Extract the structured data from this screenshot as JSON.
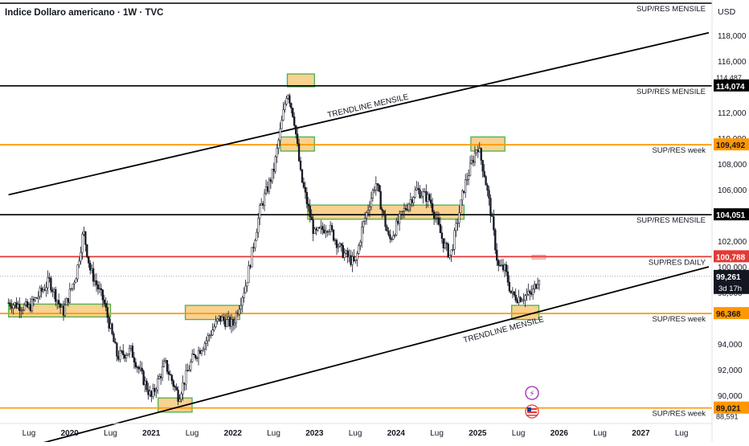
{
  "header": {
    "title": "Indice Dollaro americano · 1W · TVC",
    "currency": "USD"
  },
  "colors": {
    "background": "#ffffff",
    "candle_up": "#131722",
    "candle_down": "#131722",
    "support_black": "#000000",
    "support_orange": "#ff9800",
    "support_red": "#e53935",
    "zone_fill": "#f7c26b",
    "zone_border": "#4caf50",
    "trendline": "#000000",
    "current_price_label": "#131722",
    "axis_text": "#131722"
  },
  "chart_data": {
    "type": "candlestick",
    "title": "Indice Dollaro americano · 1W · TVC",
    "xlabel": "",
    "ylabel": "USD",
    "ylim": [
      88.0,
      120.0
    ],
    "y_ticks": [
      "118,000",
      "116,000",
      "112,000",
      "110,000",
      "108,000",
      "106,000",
      "102,000",
      "100,000",
      "98,000",
      "94,000",
      "92,000",
      "90,000"
    ],
    "x_ticks": [
      {
        "label": "Lug",
        "x": "2019-07"
      },
      {
        "label": "2020",
        "x": "2020-01"
      },
      {
        "label": "Lug",
        "x": "2020-07"
      },
      {
        "label": "2021",
        "x": "2021-01"
      },
      {
        "label": "Lug",
        "x": "2021-07"
      },
      {
        "label": "2022",
        "x": "2022-01"
      },
      {
        "label": "Lug",
        "x": "2022-07"
      },
      {
        "label": "2023",
        "x": "2023-01"
      },
      {
        "label": "Lug",
        "x": "2023-07"
      },
      {
        "label": "2024",
        "x": "2024-01"
      },
      {
        "label": "Lug",
        "x": "2024-07"
      },
      {
        "label": "2025",
        "x": "2025-01"
      },
      {
        "label": "Lug",
        "x": "2025-07"
      },
      {
        "label": "2026",
        "x": "2026-01"
      },
      {
        "label": "Lug",
        "x": "2026-07"
      },
      {
        "label": "2027",
        "x": "2027-01"
      },
      {
        "label": "Lug",
        "x": "2027-07"
      }
    ],
    "price_anchors": [
      [
        "2019-04",
        97.2
      ],
      [
        "2019-07",
        96.8
      ],
      [
        "2019-10",
        98.9
      ],
      [
        "2019-12",
        96.4
      ],
      [
        "2020-02",
        99.5
      ],
      [
        "2020-03",
        102.8
      ],
      [
        "2020-04",
        99.8
      ],
      [
        "2020-06",
        97.3
      ],
      [
        "2020-08",
        93.0
      ],
      [
        "2020-10",
        93.5
      ],
      [
        "2021-01",
        89.8
      ],
      [
        "2021-03",
        92.5
      ],
      [
        "2021-05",
        89.9
      ],
      [
        "2021-07",
        92.8
      ],
      [
        "2021-09",
        94.2
      ],
      [
        "2021-11",
        96.0
      ],
      [
        "2022-01",
        95.5
      ],
      [
        "2022-03",
        98.8
      ],
      [
        "2022-05",
        104.5
      ],
      [
        "2022-07",
        107.5
      ],
      [
        "2022-09",
        113.8
      ],
      [
        "2022-10",
        111.5
      ],
      [
        "2022-11",
        107.0
      ],
      [
        "2023-01",
        102.5
      ],
      [
        "2023-03",
        103.2
      ],
      [
        "2023-05",
        101.2
      ],
      [
        "2023-07",
        100.2
      ],
      [
        "2023-08",
        103.0
      ],
      [
        "2023-10",
        106.6
      ],
      [
        "2023-12",
        102.0
      ],
      [
        "2024-02",
        104.2
      ],
      [
        "2024-04",
        106.0
      ],
      [
        "2024-06",
        105.2
      ],
      [
        "2024-08",
        101.8
      ],
      [
        "2024-09",
        100.8
      ],
      [
        "2024-11",
        106.2
      ],
      [
        "2025-01",
        109.5
      ],
      [
        "2025-02",
        107.2
      ],
      [
        "2025-03",
        104.0
      ],
      [
        "2025-04",
        100.0
      ],
      [
        "2025-05",
        99.8
      ],
      [
        "2025-06",
        97.8
      ],
      [
        "2025-07",
        97.6
      ],
      [
        "2025-09",
        97.9
      ],
      [
        "2025-10",
        99.26
      ]
    ],
    "levels": [
      {
        "label": "SUP/RES  MENSILE",
        "value": 114.074,
        "price_label": "114,074",
        "color": "#000000",
        "tag": "level_114"
      },
      {
        "label": "SUP/RES week",
        "value": 109.492,
        "price_label": "109,492",
        "color": "#ff9800",
        "tag": "level_109"
      },
      {
        "label": "SUP/RES  MENSILE",
        "value": 104.051,
        "price_label": "104,051",
        "color": "#000000",
        "tag": "level_104"
      },
      {
        "label": "SUP/RES DAILY",
        "value": 100.788,
        "price_label": "100,788",
        "color": "#e53935",
        "tag": "level_100"
      },
      {
        "label": "SUP/RES week",
        "value": 96.368,
        "price_label": "96,368",
        "color": "#ff9800",
        "tag": "level_96"
      },
      {
        "label": "SUP/RES week",
        "value": 89.021,
        "price_label": "89,021",
        "color": "#ff9800",
        "tag": "level_89"
      }
    ],
    "top_level_label": "SUP/RES  MENSILE",
    "top_level_partial_label": "114,487",
    "bottom_level_partial_label": "88,591",
    "current_price": {
      "value": 99.261,
      "label": "99,261",
      "countdown": "3d 17h"
    },
    "trendlines": [
      {
        "label": "TRENDLINE MENSILE",
        "from": [
          "2019-04",
          105.6
        ],
        "to": [
          "2027-11",
          118.2
        ]
      },
      {
        "label": "TRENDLINE MENSILE",
        "from": [
          "2019-04",
          85.6
        ],
        "to": [
          "2027-11",
          100.0
        ]
      }
    ],
    "zones": [
      {
        "from": "2019-04",
        "to": "2020-07",
        "low": 96.1,
        "high": 97.1
      },
      {
        "from": "2021-06",
        "to": "2022-02",
        "low": 95.9,
        "high": 97.0
      },
      {
        "from": "2021-02",
        "to": "2021-07",
        "low": 88.7,
        "high": 89.8
      },
      {
        "from": "2022-08",
        "to": "2023-01",
        "low": 109.0,
        "high": 110.1
      },
      {
        "from": "2022-09",
        "to": "2023-01",
        "low": 114.0,
        "high": 115.0
      },
      {
        "from": "2022-12",
        "to": "2024-11",
        "low": 103.7,
        "high": 104.8
      },
      {
        "from": "2024-12",
        "to": "2025-05",
        "low": 109.0,
        "high": 110.1
      },
      {
        "from": "2025-06",
        "to": "2025-10",
        "low": 95.9,
        "high": 97.0
      }
    ],
    "daily_zone": {
      "from": "2025-09",
      "to": "2025-11",
      "low": 100.6,
      "high": 100.9
    },
    "grid": false
  }
}
